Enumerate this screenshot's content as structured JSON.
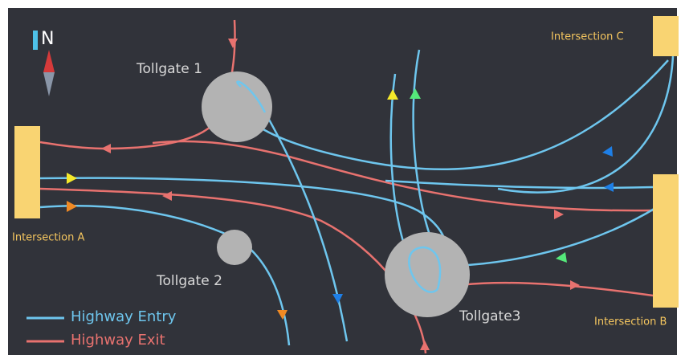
{
  "compass": {
    "label": "N"
  },
  "tollgates": [
    {
      "label": "Tollgate 1"
    },
    {
      "label": "Tollgate 2"
    },
    {
      "label": "Tollgate3"
    }
  ],
  "intersections": [
    {
      "label": "Intersection A"
    },
    {
      "label": "Intersection B"
    },
    {
      "label": "Intersection C"
    }
  ],
  "legend": [
    {
      "label": "Highway Entry"
    },
    {
      "label": "Highway Exit"
    }
  ]
}
